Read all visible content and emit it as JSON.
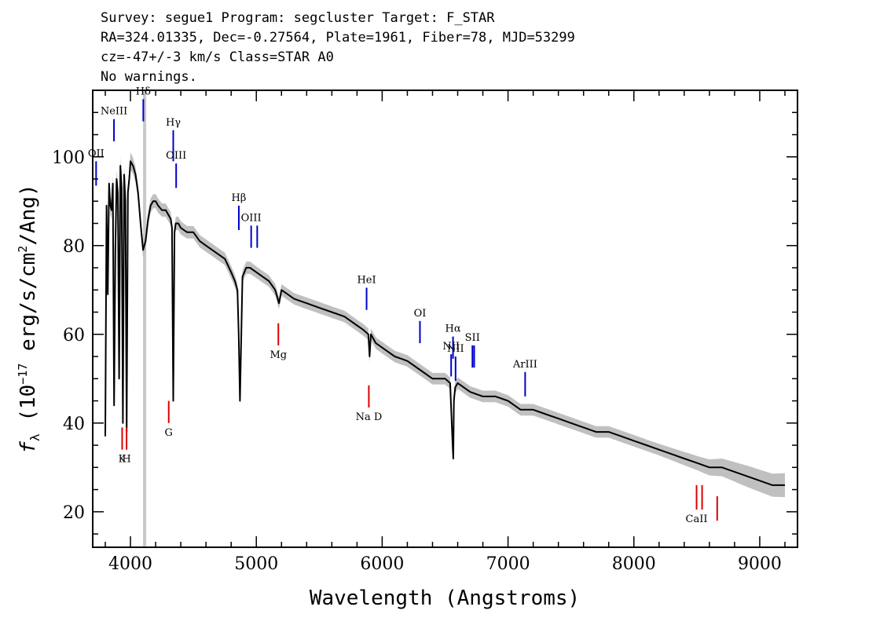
{
  "header": {
    "line1": "Survey: segue1 Program: segcluster Target: F_STAR",
    "line2": "RA=324.01335, Dec=-0.27564, Plate=1961, Fiber=78, MJD=53299",
    "line3": "cz=-47+/-3 km/s Class=STAR A0",
    "line4": "No warnings."
  },
  "chart_data": {
    "type": "line",
    "xlabel": "Wavelength (Angstroms)",
    "ylabel": "fλ (10^-17 erg/s/cm^2/Ang)",
    "xlim": [
      3700,
      9300
    ],
    "ylim": [
      12,
      115
    ],
    "x_ticks": [
      4000,
      5000,
      6000,
      7000,
      8000,
      9000
    ],
    "y_ticks": [
      20,
      40,
      60,
      80,
      100
    ],
    "grid": false,
    "colors": {
      "flux": "#000000",
      "error": "#c0c0c0",
      "emission": "#0000cc",
      "absorption": "#dd0000",
      "masked_band": "#c8c8c8"
    },
    "masked_band": [
      4100,
      4125
    ],
    "series": [
      {
        "x": [
          3800,
          3810,
          3820,
          3830,
          3840,
          3850,
          3860,
          3870,
          3880,
          3890,
          3900,
          3910,
          3920,
          3930,
          3940,
          3950,
          3960,
          3970,
          3980,
          3990,
          4000,
          4020,
          4040,
          4060,
          4080,
          4100,
          4120,
          4140,
          4160,
          4180,
          4200,
          4220,
          4250,
          4280,
          4300,
          4320,
          4330,
          4340,
          4350,
          4360,
          4380,
          4400,
          4450,
          4500,
          4550,
          4600,
          4650,
          4700,
          4750,
          4800,
          4830,
          4850,
          4860,
          4870,
          4890,
          4920,
          4950,
          5000,
          5050,
          5100,
          5150,
          5180,
          5200,
          5250,
          5300,
          5400,
          5500,
          5600,
          5700,
          5800,
          5850,
          5890,
          5900,
          5910,
          5950,
          6000,
          6100,
          6200,
          6300,
          6400,
          6500,
          6540,
          6560,
          6565,
          6570,
          6580,
          6600,
          6650,
          6700,
          6800,
          6900,
          7000,
          7100,
          7200,
          7300,
          7400,
          7500,
          7600,
          7700,
          7800,
          7900,
          8000,
          8100,
          8200,
          8300,
          8400,
          8500,
          8600,
          8700,
          8800,
          8900,
          9000,
          9100,
          9200
        ],
        "y": [
          37,
          89,
          69,
          94,
          89,
          88,
          94,
          44,
          79,
          95,
          92,
          50,
          98,
          93,
          40,
          96,
          90,
          38,
          92,
          95,
          99,
          98,
          96,
          92,
          85,
          79,
          81,
          86,
          89,
          90,
          90,
          89,
          88,
          88,
          87,
          86,
          84,
          45,
          83,
          85,
          85,
          84,
          83,
          83,
          81,
          80,
          79,
          78,
          77,
          74,
          72,
          70,
          60,
          45,
          73,
          75,
          75,
          74,
          73,
          72,
          70,
          67,
          70,
          69,
          68,
          67,
          66,
          65,
          64,
          62,
          61,
          60,
          55,
          60,
          58,
          57,
          55,
          54,
          52,
          50,
          50,
          49,
          35,
          32,
          45,
          48,
          49,
          48,
          47,
          46,
          46,
          45,
          43,
          43,
          42,
          41,
          40,
          39,
          38,
          38,
          37,
          36,
          35,
          34,
          33,
          32,
          31,
          30,
          30,
          29,
          28,
          27,
          26,
          26
        ],
        "error": [
          1.5,
          2,
          2,
          2,
          2,
          2,
          2,
          2,
          2,
          2,
          2,
          2,
          2,
          2,
          2,
          2,
          2,
          2,
          2,
          2,
          2,
          1.8,
          1.8,
          1.8,
          1.8,
          1.8,
          1.8,
          1.8,
          1.6,
          1.6,
          1.6,
          1.6,
          1.5,
          1.5,
          1.5,
          1.5,
          1.5,
          1.5,
          1.5,
          1.5,
          1.5,
          1.5,
          1.4,
          1.4,
          1.4,
          1.4,
          1.4,
          1.4,
          1.4,
          1.4,
          1.4,
          1.4,
          1.4,
          1.4,
          1.4,
          1.4,
          1.4,
          1.3,
          1.3,
          1.3,
          1.3,
          1.3,
          1.3,
          1.3,
          1.3,
          1.3,
          1.3,
          1.3,
          1.3,
          1.3,
          1.3,
          1.3,
          1.3,
          1.3,
          1.3,
          1.3,
          1.3,
          1.3,
          1.3,
          1.3,
          1.3,
          1.3,
          1.3,
          1.3,
          1.3,
          1.3,
          1.3,
          1.3,
          1.3,
          1.3,
          1.3,
          1.3,
          1.3,
          1.3,
          1.3,
          1.3,
          1.3,
          1.3,
          1.3,
          1.3,
          1.3,
          1.3,
          1.3,
          1.3,
          1.4,
          1.5,
          1.6,
          1.8,
          2,
          2.2,
          2.4,
          2.5,
          2.6,
          2.7
        ]
      }
    ],
    "emission_lines": [
      {
        "label": "OII",
        "wavelength": 3727,
        "y_top": 99,
        "y_bottom": 93.5
      },
      {
        "label": "NeIII",
        "wavelength": 3869,
        "y_top": 108.5,
        "y_bottom": 103.5
      },
      {
        "label": "Hδ",
        "wavelength": 4102,
        "y_top": 113,
        "y_bottom": 108
      },
      {
        "label": "Hγ",
        "wavelength": 4340,
        "y_top": 106,
        "y_bottom": 99
      },
      {
        "label": "OIII",
        "wavelength": 4363,
        "y_top": 98.5,
        "y_bottom": 93
      },
      {
        "label": "Hβ",
        "wavelength": 4861,
        "y_top": 89,
        "y_bottom": 83.5
      },
      {
        "label": "OIII",
        "wavelength": 4959,
        "y_top": 84.5,
        "y_bottom": 79.5
      },
      {
        "label": "",
        "wavelength": 5007,
        "y_top": 84.5,
        "y_bottom": 79.5
      },
      {
        "label": "HeI",
        "wavelength": 5876,
        "y_top": 70.5,
        "y_bottom": 65.5
      },
      {
        "label": "OI",
        "wavelength": 6300,
        "y_top": 63,
        "y_bottom": 58
      },
      {
        "label": "NII",
        "wavelength": 6548,
        "y_top": 55.5,
        "y_bottom": 50.5
      },
      {
        "label": "Hα",
        "wavelength": 6563,
        "y_top": 59.5,
        "y_bottom": 54.5
      },
      {
        "label": "NII",
        "wavelength": 6583,
        "y_top": 55,
        "y_bottom": 49.5
      },
      {
        "label": "SII",
        "wavelength": 6717,
        "y_top": 57.5,
        "y_bottom": 52.5
      },
      {
        "label": "",
        "wavelength": 6731,
        "y_top": 57.5,
        "y_bottom": 52.5
      },
      {
        "label": "ArIII",
        "wavelength": 7136,
        "y_top": 51.5,
        "y_bottom": 46
      }
    ],
    "absorption_lines": [
      {
        "label": "Mg",
        "wavelength": 5175,
        "y_top": 62.5,
        "y_bottom": 57.5
      },
      {
        "label": "K",
        "wavelength": 3934,
        "y_top": 39,
        "y_bottom": 34
      },
      {
        "label": "H",
        "wavelength": 3969,
        "y_top": 39,
        "y_bottom": 34
      },
      {
        "label": "G",
        "wavelength": 4304,
        "y_top": 45,
        "y_bottom": 40
      },
      {
        "label": "Na D",
        "wavelength": 5894,
        "y_top": 48.5,
        "y_bottom": 43.5
      },
      {
        "label": "CaII",
        "wavelength": 8498,
        "y_top": 26,
        "y_bottom": 20.5
      },
      {
        "label": "",
        "wavelength": 8542,
        "y_top": 26,
        "y_bottom": 20.5
      },
      {
        "label": "",
        "wavelength": 8662,
        "y_top": 23.5,
        "y_bottom": 18
      }
    ]
  }
}
